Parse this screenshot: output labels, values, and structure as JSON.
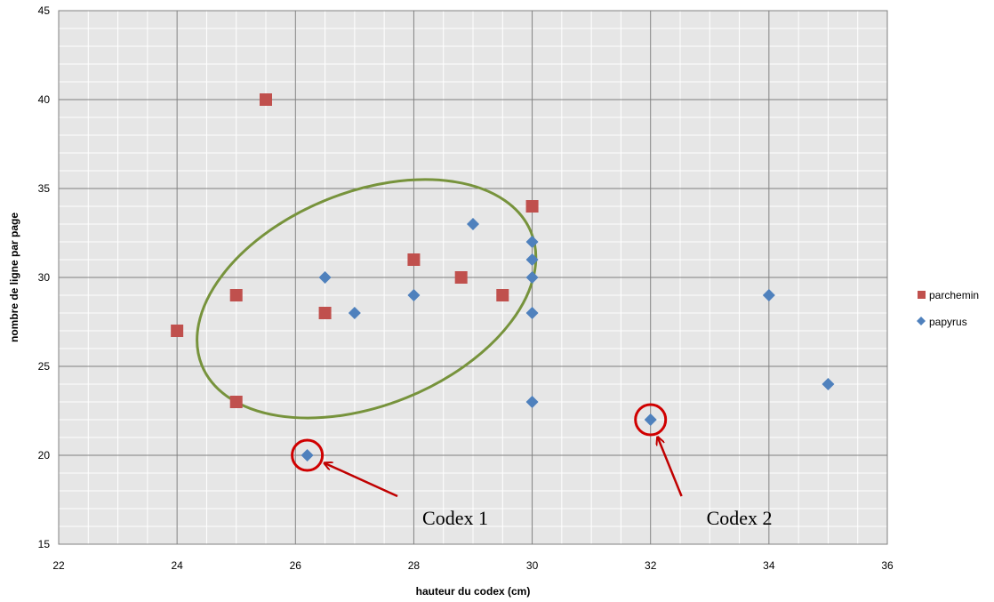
{
  "chart_data": {
    "type": "scatter",
    "title": "",
    "xlabel": "hauteur du codex (cm)",
    "ylabel": "nombre de ligne par page",
    "xlim": [
      22,
      36
    ],
    "ylim": [
      15,
      45
    ],
    "x_ticks": [
      22,
      24,
      26,
      28,
      30,
      32,
      34,
      36
    ],
    "y_ticks": [
      15,
      20,
      25,
      30,
      35,
      40,
      45
    ],
    "x_tick_labels": [
      "22",
      "24",
      "26",
      "28",
      "30",
      "32",
      "34",
      "36"
    ],
    "y_tick_labels": [
      "15",
      "20",
      "25",
      "30",
      "35",
      "40",
      "45"
    ],
    "x_minor_step": 0.5,
    "y_minor_step": 1,
    "grid": true,
    "legend_position": "right",
    "series": [
      {
        "name": "parchemin",
        "marker": "square",
        "color": "#C0504D",
        "points": [
          {
            "x": 25.5,
            "y": 40
          },
          {
            "x": 24,
            "y": 27
          },
          {
            "x": 25,
            "y": 29
          },
          {
            "x": 25,
            "y": 23
          },
          {
            "x": 26.5,
            "y": 28
          },
          {
            "x": 28,
            "y": 31
          },
          {
            "x": 28.8,
            "y": 30
          },
          {
            "x": 29.5,
            "y": 29
          },
          {
            "x": 30,
            "y": 34
          }
        ]
      },
      {
        "name": "papyrus",
        "marker": "diamond",
        "color": "#4F81BD",
        "points": [
          {
            "x": 26.5,
            "y": 30
          },
          {
            "x": 27,
            "y": 28
          },
          {
            "x": 28,
            "y": 29
          },
          {
            "x": 29,
            "y": 33
          },
          {
            "x": 30,
            "y": 32
          },
          {
            "x": 30,
            "y": 31
          },
          {
            "x": 30,
            "y": 30
          },
          {
            "x": 30,
            "y": 28
          },
          {
            "x": 30,
            "y": 23
          },
          {
            "x": 26.2,
            "y": 20
          },
          {
            "x": 32,
            "y": 22
          },
          {
            "x": 34,
            "y": 29
          },
          {
            "x": 35,
            "y": 24
          }
        ]
      }
    ],
    "annotations": [
      {
        "label": "Codex 1",
        "target": {
          "x": 26.2,
          "y": 20
        },
        "text_at": {
          "x": 28.7,
          "y": 16.5
        }
      },
      {
        "label": "Codex 2",
        "target": {
          "x": 32,
          "y": 22
        },
        "text_at": {
          "x": 33.5,
          "y": 16.5
        }
      }
    ],
    "cluster_ellipse": {
      "color": "#77933C",
      "center": {
        "x": 27.2,
        "y": 28.8
      },
      "rx": 3.0,
      "ry": 6.0,
      "rotation_deg": -22
    }
  }
}
